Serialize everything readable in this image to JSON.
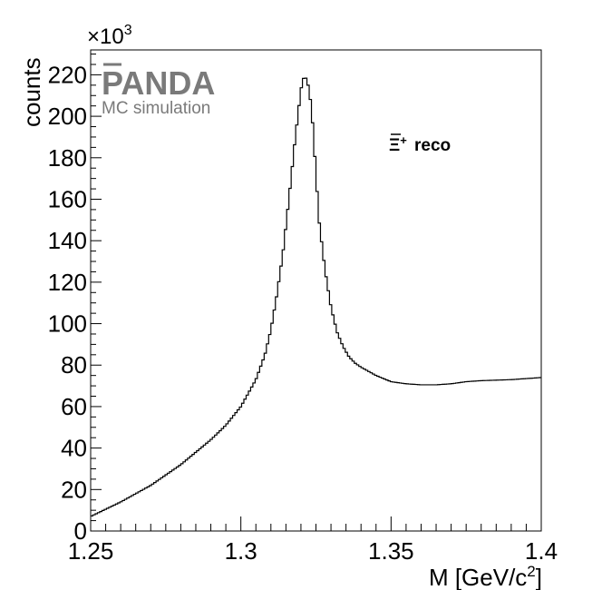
{
  "chart_data": {
    "type": "line",
    "xlabel_main": "M [GeV/c",
    "xlabel_sup": "2",
    "xlabel_end": "]",
    "ylabel": "counts",
    "y_multiplier_base": "×10",
    "y_multiplier_exp": "3",
    "xlim": [
      1.25,
      1.4
    ],
    "ylim": [
      0,
      232
    ],
    "x_ticks": [
      1.25,
      1.3,
      1.35,
      1.4
    ],
    "x_tick_labels": [
      "1.25",
      "1.3",
      "1.35",
      "1.4"
    ],
    "y_ticks": [
      0,
      20,
      40,
      60,
      80,
      100,
      120,
      140,
      160,
      180,
      200,
      220
    ],
    "y_tick_labels": [
      "0",
      "20",
      "40",
      "60",
      "80",
      "100",
      "120",
      "140",
      "160",
      "180",
      "200",
      "220"
    ],
    "grid": false,
    "series": [
      {
        "style": "step-histogram",
        "color": "#000000",
        "x": [
          1.25,
          1.26,
          1.27,
          1.28,
          1.29,
          1.295,
          1.3,
          1.305,
          1.308,
          1.31,
          1.312,
          1.314,
          1.316,
          1.318,
          1.32,
          1.321,
          1.322,
          1.323,
          1.324,
          1.325,
          1.326,
          1.328,
          1.33,
          1.332,
          1.334,
          1.336,
          1.338,
          1.34,
          1.345,
          1.35,
          1.355,
          1.36,
          1.365,
          1.37,
          1.375,
          1.38,
          1.39,
          1.4
        ],
        "y": [
          7,
          14,
          22,
          32,
          44,
          51,
          60,
          73,
          85,
          97,
          114,
          134,
          160,
          188,
          213,
          219,
          218,
          210,
          195,
          172,
          150,
          126,
          108,
          96,
          89,
          84,
          81,
          79,
          75,
          72,
          71,
          70.5,
          70.5,
          71,
          72,
          72.5,
          73,
          74
        ]
      }
    ]
  },
  "logo": {
    "name": "PANDA",
    "subtitle": "MC simulation"
  },
  "annotation": {
    "symbol": "Ξ",
    "superscript": "+",
    "text": "reco"
  },
  "colors": {
    "logo": "#7a7a7a",
    "line": "#000000"
  }
}
